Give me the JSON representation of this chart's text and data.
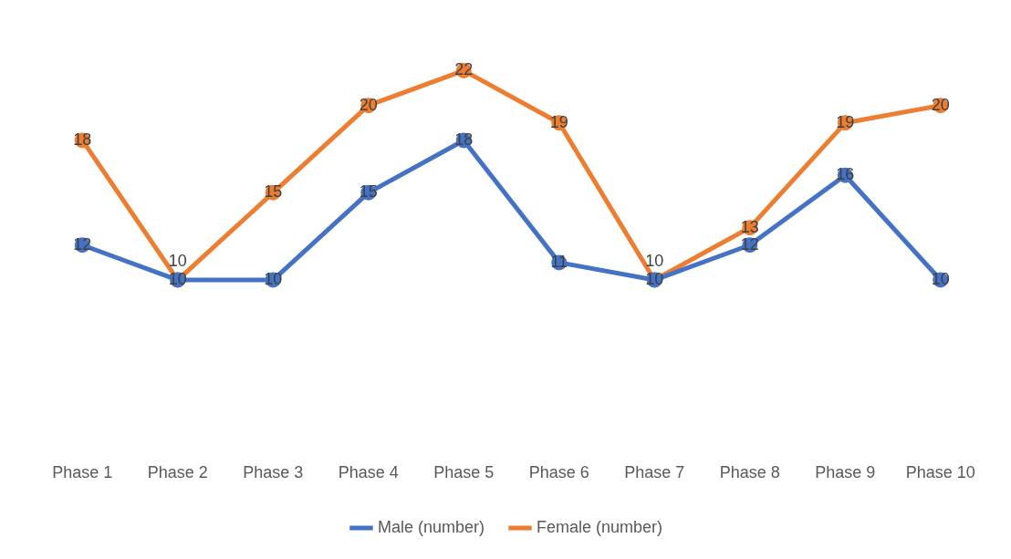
{
  "chart_data": {
    "type": "line",
    "categories": [
      "Phase 1",
      "Phase 2",
      "Phase 3",
      "Phase 4",
      "Phase 5",
      "Phase 6",
      "Phase 7",
      "Phase 8",
      "Phase 9",
      "Phase 10"
    ],
    "series": [
      {
        "name": "Male (number)",
        "color": "#4472c4",
        "values": [
          12,
          10,
          10,
          15,
          18,
          11,
          10,
          12,
          16,
          10
        ]
      },
      {
        "name": "Female (number)",
        "color": "#ed7d31",
        "values": [
          18,
          10,
          15,
          20,
          22,
          19,
          10,
          13,
          19,
          20
        ]
      }
    ],
    "tick_labels": "x",
    "legend": "bottom",
    "marker": "circle",
    "line_style": "solid",
    "data_labels": true
  }
}
